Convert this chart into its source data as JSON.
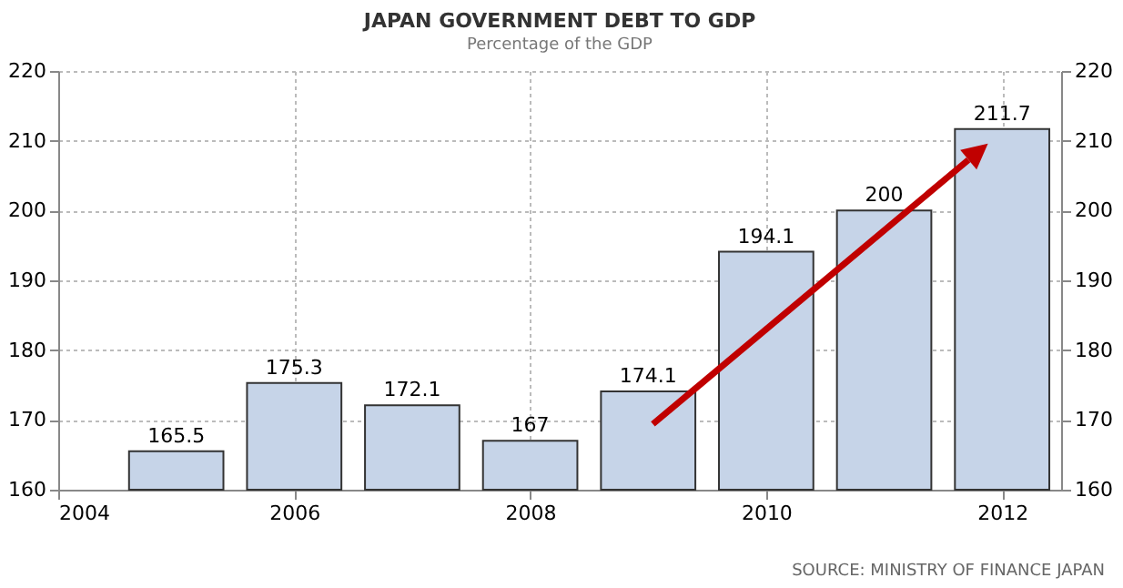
{
  "chart_data": {
    "type": "bar",
    "title": "JAPAN GOVERNMENT DEBT TO GDP",
    "subtitle": "Percentage of the GDP",
    "x": [
      2005,
      2006,
      2007,
      2008,
      2009,
      2010,
      2011,
      2012
    ],
    "series": [
      {
        "color": "#c6d4e8",
        "values": [
          165.5,
          175.3,
          172.1,
          167,
          174.1,
          194.1,
          200,
          211.7
        ]
      }
    ],
    "xlim": [
      2004,
      2012.5
    ],
    "xticks": [
      2004,
      2006,
      2008,
      2010,
      2012
    ],
    "ylim": [
      160,
      220
    ],
    "yticks": [
      160,
      170,
      180,
      190,
      200,
      210,
      220
    ],
    "y2lim": [
      160,
      220
    ],
    "y2ticks": [
      160,
      170,
      180,
      190,
      200,
      210,
      220
    ],
    "data_labels": true,
    "grid": true,
    "annotations": [
      "SOURCE: MINISTRY OF FINANCE JAPAN"
    ]
  }
}
